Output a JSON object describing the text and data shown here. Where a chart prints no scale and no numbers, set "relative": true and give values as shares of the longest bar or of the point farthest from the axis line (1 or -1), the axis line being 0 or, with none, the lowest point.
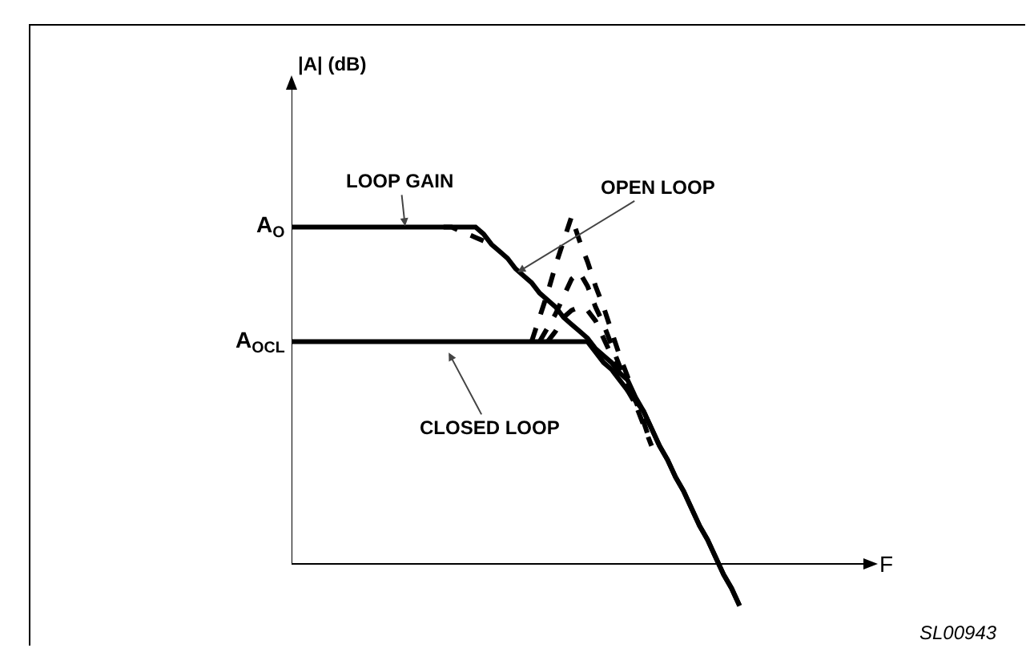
{
  "chart_data": {
    "type": "line",
    "relative": true,
    "grid": false,
    "marker": "none",
    "categories": [
      null,
      null,
      null,
      null,
      null,
      null,
      null,
      null,
      null,
      null,
      null,
      null,
      null,
      null,
      null,
      null,
      null,
      null,
      null,
      null,
      null,
      null,
      null,
      null,
      null,
      null,
      null,
      null,
      null,
      null,
      null,
      null,
      null,
      null,
      null,
      null,
      null,
      null,
      null,
      null,
      null,
      null,
      null,
      null,
      null,
      null,
      null,
      null,
      null,
      null,
      null,
      null,
      null,
      null,
      null,
      null,
      null
    ],
    "series": [
      {
        "color": "#000000",
        "line_style": "solid",
        "values": [
          0.97,
          0.97,
          0.97,
          0.97,
          0.97,
          0.97,
          0.97,
          0.97,
          0.97,
          0.97,
          0.97,
          0.97,
          0.97,
          0.97,
          0.97,
          0.97,
          0.97,
          0.97,
          0.97,
          0.97,
          0.97,
          0.97,
          0.97,
          0.97,
          0.95,
          0.92,
          0.9,
          0.88,
          0.85,
          0.83,
          0.81,
          0.78,
          0.76,
          0.74,
          0.71,
          0.69,
          0.67,
          0.65,
          0.62,
          0.6,
          0.58,
          0.55,
          0.53,
          0.48,
          0.44,
          0.39,
          0.34,
          0.3,
          0.25,
          0.21,
          0.16,
          0.11,
          0.07,
          0.02,
          -0.03,
          -0.07,
          -0.12
        ]
      },
      {
        "color": "#000000",
        "line_style": "solid",
        "values": [
          0.64,
          0.64,
          0.64,
          0.64,
          0.64,
          0.64,
          0.64,
          0.64,
          0.64,
          0.64,
          0.64,
          0.64,
          0.64,
          0.64,
          0.64,
          0.64,
          0.64,
          0.64,
          0.64,
          0.64,
          0.64,
          0.64,
          0.64,
          0.64,
          0.64,
          0.64,
          0.64,
          0.64,
          0.64,
          0.64,
          0.64,
          0.64,
          0.64,
          0.64,
          0.64,
          0.64,
          0.64,
          0.64,
          0.61,
          0.58,
          0.56,
          0.53,
          0.5,
          0.47,
          0.44,
          0.39,
          0.34,
          0.3,
          0.25,
          0.21,
          0.16,
          0.11,
          0.07,
          0.02,
          -0.03,
          -0.07,
          -0.12
        ]
      },
      {
        "color": "#000000",
        "line_style": "dashed",
        "values": [
          null,
          null,
          null,
          null,
          null,
          null,
          null,
          null,
          null,
          null,
          null,
          null,
          null,
          null,
          null,
          null,
          null,
          null,
          null,
          0.97,
          0.97,
          0.96,
          0.95,
          0.94,
          0.93,
          null,
          null,
          null,
          null,
          null,
          null,
          null,
          null,
          null,
          null,
          null,
          null,
          null,
          null,
          null,
          null,
          null,
          null,
          null,
          null,
          null,
          null,
          null,
          null,
          null,
          null,
          null,
          null,
          null,
          null,
          null,
          null
        ]
      },
      {
        "color": "#000000",
        "line_style": "dashed",
        "values": [
          null,
          null,
          null,
          null,
          null,
          null,
          null,
          null,
          null,
          null,
          null,
          null,
          null,
          null,
          null,
          null,
          null,
          null,
          null,
          null,
          null,
          null,
          null,
          null,
          null,
          null,
          null,
          null,
          null,
          null,
          0.64,
          0.71,
          0.78,
          0.86,
          0.93,
          1.0,
          0.93,
          0.87,
          0.8,
          0.74,
          0.67,
          0.6,
          0.54,
          0.47,
          0.41,
          0.34,
          null,
          null,
          null,
          null,
          null,
          null,
          null,
          null,
          null,
          null,
          null
        ]
      },
      {
        "color": "#000000",
        "line_style": "dashed",
        "values": [
          null,
          null,
          null,
          null,
          null,
          null,
          null,
          null,
          null,
          null,
          null,
          null,
          null,
          null,
          null,
          null,
          null,
          null,
          null,
          null,
          null,
          null,
          null,
          null,
          null,
          null,
          null,
          null,
          null,
          null,
          null,
          0.64,
          0.68,
          0.72,
          0.77,
          0.82,
          0.84,
          0.8,
          0.74,
          0.69,
          0.63,
          0.57,
          0.51,
          0.46,
          0.4,
          0.34,
          null,
          null,
          null,
          null,
          null,
          null,
          null,
          null,
          null,
          null,
          null
        ]
      },
      {
        "color": "#000000",
        "line_style": "dashed",
        "values": [
          null,
          null,
          null,
          null,
          null,
          null,
          null,
          null,
          null,
          null,
          null,
          null,
          null,
          null,
          null,
          null,
          null,
          null,
          null,
          null,
          null,
          null,
          null,
          null,
          null,
          null,
          null,
          null,
          null,
          null,
          null,
          null,
          0.64,
          0.67,
          0.71,
          0.73,
          0.74,
          0.73,
          0.7,
          0.65,
          0.6,
          0.55,
          0.5,
          0.46,
          null,
          null,
          null,
          null,
          null,
          null,
          null,
          null,
          null,
          null,
          null,
          null,
          null
        ]
      }
    ],
    "annotations": [
      "LOOP GAIN",
      "OPEN LOOP",
      "CLOSED LOOP",
      "SL00943",
      "A$_{O}$",
      "A$_{OCL}$",
      "|A| (dB)",
      "F"
    ]
  }
}
